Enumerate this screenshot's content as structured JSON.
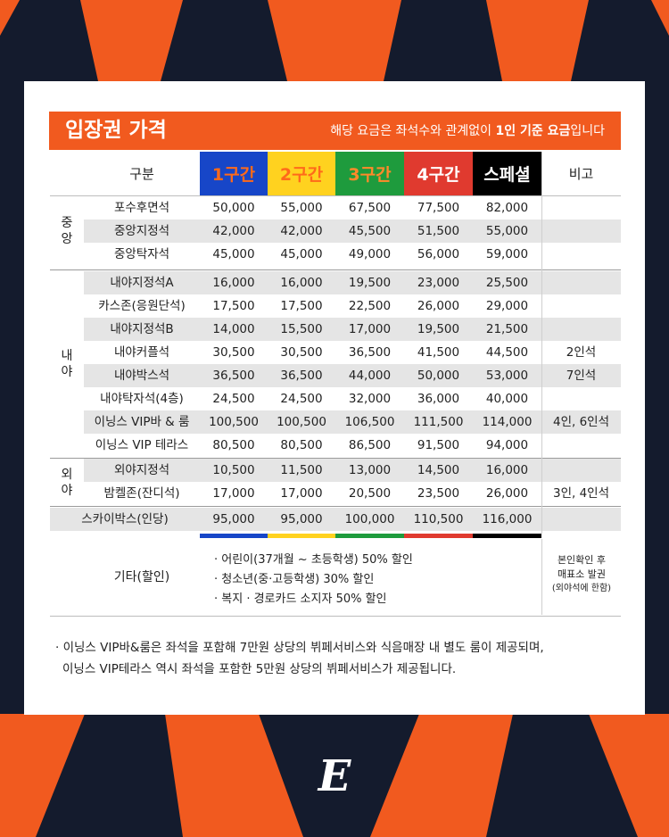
{
  "banner": {
    "title": "입장권 가격",
    "note_pre": "해당 요금은 좌석수와 관계없이 ",
    "note_bold": "1인 기준 요금",
    "note_post": "입니다"
  },
  "headers": {
    "category": "구분",
    "remarks": "비고",
    "zones": [
      {
        "label": "1구간",
        "bg": "#1746c8",
        "fg": "#ff6a1a"
      },
      {
        "label": "2구간",
        "bg": "#ffd21f",
        "fg": "#ff6a1a"
      },
      {
        "label": "3구간",
        "bg": "#1e9b3d",
        "fg": "#ff8a2a"
      },
      {
        "label": "4구간",
        "bg": "#e03a2f",
        "fg": "#ffffff"
      },
      {
        "label": "스페셜",
        "bg": "#000000",
        "fg": "#ffffff"
      }
    ]
  },
  "groups": {
    "central": "중\n앙",
    "infield": "내\n야",
    "outfield": "외\n야"
  },
  "rows": [
    {
      "name": "포수후면석",
      "prices": [
        "50,000",
        "55,000",
        "67,500",
        "77,500",
        "82,000"
      ],
      "note": ""
    },
    {
      "name": "중앙지정석",
      "prices": [
        "42,000",
        "42,000",
        "45,500",
        "51,500",
        "55,000"
      ],
      "note": ""
    },
    {
      "name": "중앙탁자석",
      "prices": [
        "45,000",
        "45,000",
        "49,000",
        "56,000",
        "59,000"
      ],
      "note": ""
    },
    {
      "name": "내야지정석A",
      "prices": [
        "16,000",
        "16,000",
        "19,500",
        "23,000",
        "25,500"
      ],
      "note": ""
    },
    {
      "name": "카스존(응원단석)",
      "prices": [
        "17,500",
        "17,500",
        "22,500",
        "26,000",
        "29,000"
      ],
      "note": ""
    },
    {
      "name": "내야지정석B",
      "prices": [
        "14,000",
        "15,500",
        "17,000",
        "19,500",
        "21,500"
      ],
      "note": ""
    },
    {
      "name": "내야커플석",
      "prices": [
        "30,500",
        "30,500",
        "36,500",
        "41,500",
        "44,500"
      ],
      "note": "2인석"
    },
    {
      "name": "내야박스석",
      "prices": [
        "36,500",
        "36,500",
        "44,000",
        "50,000",
        "53,000"
      ],
      "note": "7인석"
    },
    {
      "name": "내야탁자석(4층)",
      "prices": [
        "24,500",
        "24,500",
        "32,000",
        "36,000",
        "40,000"
      ],
      "note": ""
    },
    {
      "name": "이닝스 VIP바 & 룸",
      "prices": [
        "100,500",
        "100,500",
        "106,500",
        "111,500",
        "114,000"
      ],
      "note": "4인, 6인석"
    },
    {
      "name": "이닝스 VIP 테라스",
      "prices": [
        "80,500",
        "80,500",
        "86,500",
        "91,500",
        "94,000"
      ],
      "note": ""
    },
    {
      "name": "외야지정석",
      "prices": [
        "10,500",
        "11,500",
        "13,000",
        "14,500",
        "16,000"
      ],
      "note": ""
    },
    {
      "name": "밤켈존(잔디석)",
      "prices": [
        "17,000",
        "17,000",
        "20,500",
        "23,500",
        "26,000"
      ],
      "note": "3인, 4인석"
    },
    {
      "name": "스카이박스(인당)",
      "prices": [
        "95,000",
        "95,000",
        "100,000",
        "110,500",
        "116,000"
      ],
      "note": ""
    }
  ],
  "etc": {
    "label": "기타(할인)",
    "items": [
      "· 어린이(37개월 ~ 초등학생) 50% 할인",
      "· 청소년(중·고등학생) 30% 할인",
      "· 복지 · 경로카드 소지자 50% 할인"
    ],
    "note_lines": [
      "본인확인 후",
      "매표소 발권",
      "(외야석에 한함)"
    ]
  },
  "footnote": [
    "· 이닝스 VIP바&룸은 좌석을 포함해 7만원 상당의 뷔페서비스와 식음매장 내 별도 룸이 제공되며,",
    "이닝스 VIP테라스 역시 좌석을 포함한 5만원 상당의 뷔페서비스가 제공됩니다."
  ],
  "logo_letter": "E",
  "colors": {
    "orange": "#f15a1f",
    "navy": "#141b2d",
    "row_gray": "#e5e5e5"
  }
}
